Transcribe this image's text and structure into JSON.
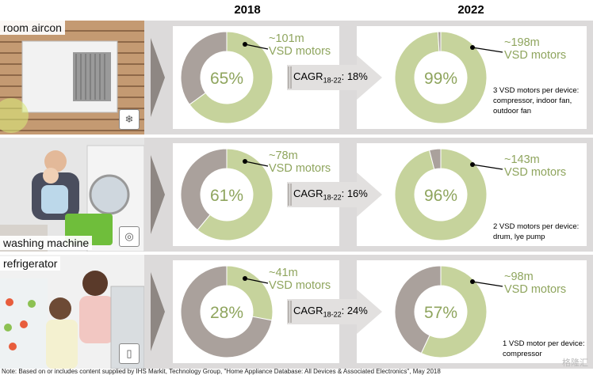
{
  "headers": {
    "year_left": "2018",
    "year_right": "2022"
  },
  "colors": {
    "green": "#c6d39c",
    "grey": "#aaa19c",
    "text_green": "#8fa55e",
    "band": "#dcdada"
  },
  "chart_data": [
    {
      "type": "pie",
      "category": "room aircon",
      "donut_2018": {
        "share_pct": 65,
        "label": "65%",
        "motors": "~101m",
        "motors_unit": "VSD motors"
      },
      "donut_2022": {
        "share_pct": 99,
        "label": "99%",
        "motors": "~198m",
        "motors_unit": "VSD motors"
      },
      "cagr_label": "CAGR",
      "cagr_sub": "18-22",
      "cagr_value": ": 18%",
      "note": "3 VSD motors per device: compressor, indoor fan, outdoor fan"
    },
    {
      "type": "pie",
      "category": "washing machine",
      "donut_2018": {
        "share_pct": 61,
        "label": "61%",
        "motors": "~78m",
        "motors_unit": "VSD motors"
      },
      "donut_2022": {
        "share_pct": 96,
        "label": "96%",
        "motors": "~143m",
        "motors_unit": "VSD motors"
      },
      "cagr_label": "CAGR",
      "cagr_sub": "18-22",
      "cagr_value": ": 16%",
      "note": "2 VSD motors per device: drum, lye pump"
    },
    {
      "type": "pie",
      "category": "refrigerator",
      "donut_2018": {
        "share_pct": 28,
        "label": "28%",
        "motors": "~41m",
        "motors_unit": "VSD motors"
      },
      "donut_2022": {
        "share_pct": 57,
        "label": "57%",
        "motors": "~98m",
        "motors_unit": "VSD motors"
      },
      "cagr_label": "CAGR",
      "cagr_sub": "18-22",
      "cagr_value": ": 24%",
      "note": "1 VSD motor per device: compressor"
    }
  ],
  "footnote": "Note: Based on or includes content supplied by IHS Markit, Technology Group, \"Home Appliance Database: All Devices & Associated Electronics\", May 2018",
  "watermark": "格隆汇"
}
